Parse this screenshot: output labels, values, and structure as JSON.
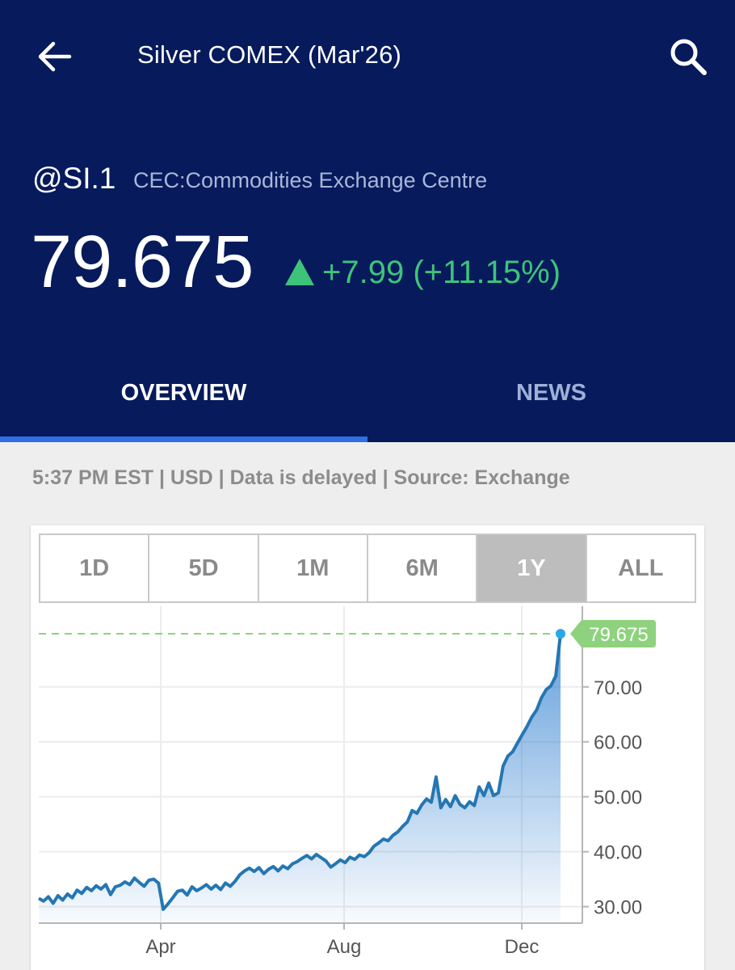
{
  "header": {
    "title": "Silver COMEX (Mar'26)",
    "back_icon": "arrow-left-icon",
    "search_icon": "magnifier-icon"
  },
  "quote": {
    "symbol": "@SI.1",
    "exchange": "CEC:Commodities Exchange Centre",
    "price": "79.675",
    "change": "+7.99 (+11.15%)",
    "direction": "up",
    "up_color": "#3ec37a"
  },
  "tabs": [
    {
      "label": "OVERVIEW",
      "active": true
    },
    {
      "label": "NEWS",
      "active": false
    }
  ],
  "status_line": "5:37 PM EST | USD | Data is delayed | Source: Exchange",
  "ranges": [
    {
      "label": "1D",
      "active": false
    },
    {
      "label": "5D",
      "active": false
    },
    {
      "label": "1M",
      "active": false
    },
    {
      "label": "6M",
      "active": false
    },
    {
      "label": "1Y",
      "active": true
    },
    {
      "label": "ALL",
      "active": false
    }
  ],
  "chart_data": {
    "type": "area",
    "x_labels": [
      "Apr",
      "Aug",
      "Dec"
    ],
    "y_ticks": [
      "30.00",
      "40.00",
      "50.00",
      "60.00",
      "70.00"
    ],
    "ylim": [
      27,
      81
    ],
    "last_value": 79.675,
    "last_label": "79.675",
    "line_color": "#2576b2",
    "last_marker_color": "#29a9e8",
    "last_label_color": "#8fd27e",
    "grid": true,
    "series": [
      {
        "values": [
          31.5,
          31.0,
          31.8,
          30.6,
          32.0,
          31.2,
          32.3,
          31.6,
          33.0,
          32.4,
          33.5,
          32.9,
          33.8,
          33.2,
          34.0,
          32.2,
          33.6,
          33.9,
          34.5,
          34.0,
          35.2,
          34.4,
          33.7,
          34.8,
          35.0,
          34.3,
          29.5,
          30.5,
          31.6,
          32.8,
          33.0,
          32.1,
          33.6,
          32.9,
          33.4,
          34.0,
          33.2,
          33.9,
          33.1,
          34.3,
          33.7,
          34.6,
          35.8,
          36.5,
          37.0,
          36.4,
          37.1,
          36.0,
          36.8,
          37.3,
          36.5,
          37.4,
          36.9,
          37.8,
          38.2,
          38.8,
          39.3,
          38.7,
          39.5,
          38.9,
          38.3,
          37.2,
          37.8,
          38.5,
          38.0,
          39.0,
          38.6,
          39.4,
          39.1,
          39.8,
          41.0,
          41.6,
          42.3,
          42.0,
          43.0,
          43.6,
          44.6,
          45.4,
          47.5,
          47.0,
          48.5,
          49.6,
          49.0,
          53.6,
          48.0,
          49.5,
          48.2,
          50.2,
          48.6,
          48.0,
          49.1,
          48.4,
          51.8,
          50.2,
          52.5,
          50.2,
          50.7,
          55.6,
          57.4,
          58.2,
          59.8,
          61.3,
          62.8,
          64.5,
          65.8,
          68.0,
          69.5,
          70.2,
          72.0,
          79.675
        ]
      }
    ]
  }
}
